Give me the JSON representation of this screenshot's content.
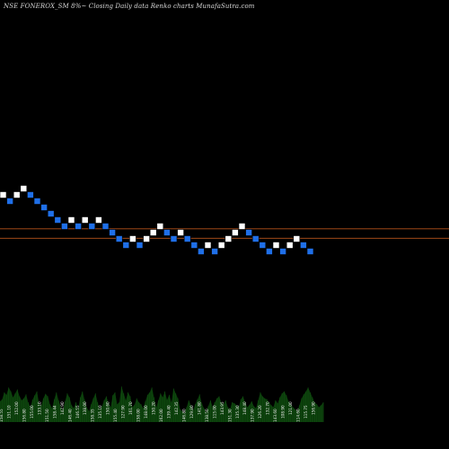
{
  "title": "NSE FONEROX_SM 8%~  Closing Daily data  Renko  charts MunafaSutra.com",
  "colors": {
    "background": "#000000",
    "up_brick": "#ffffff",
    "down_brick": "#1f6fe8",
    "reference_line": "#b5521b",
    "volume_fill": "#0b3a0b",
    "volume_label": "#e8e8e8"
  },
  "chart_data": {
    "type": "renko",
    "bricks": [
      {
        "dir": "up",
        "level": 0
      },
      {
        "dir": "down",
        "level": -1
      },
      {
        "dir": "up",
        "level": 0
      },
      {
        "dir": "up",
        "level": 1
      },
      {
        "dir": "down",
        "level": 0
      },
      {
        "dir": "down",
        "level": -1
      },
      {
        "dir": "down",
        "level": -2
      },
      {
        "dir": "down",
        "level": -3
      },
      {
        "dir": "down",
        "level": -4
      },
      {
        "dir": "down",
        "level": -5
      },
      {
        "dir": "up",
        "level": -4
      },
      {
        "dir": "down",
        "level": -5
      },
      {
        "dir": "up",
        "level": -4
      },
      {
        "dir": "down",
        "level": -5
      },
      {
        "dir": "up",
        "level": -4
      },
      {
        "dir": "down",
        "level": -5
      },
      {
        "dir": "down",
        "level": -6
      },
      {
        "dir": "down",
        "level": -7
      },
      {
        "dir": "down",
        "level": -8
      },
      {
        "dir": "up",
        "level": -7
      },
      {
        "dir": "down",
        "level": -8
      },
      {
        "dir": "up",
        "level": -7
      },
      {
        "dir": "up",
        "level": -6
      },
      {
        "dir": "up",
        "level": -5
      },
      {
        "dir": "down",
        "level": -6
      },
      {
        "dir": "down",
        "level": -7
      },
      {
        "dir": "up",
        "level": -6
      },
      {
        "dir": "down",
        "level": -7
      },
      {
        "dir": "down",
        "level": -8
      },
      {
        "dir": "down",
        "level": -9
      },
      {
        "dir": "up",
        "level": -8
      },
      {
        "dir": "down",
        "level": -9
      },
      {
        "dir": "up",
        "level": -8
      },
      {
        "dir": "up",
        "level": -7
      },
      {
        "dir": "up",
        "level": -6
      },
      {
        "dir": "up",
        "level": -5
      },
      {
        "dir": "down",
        "level": -6
      },
      {
        "dir": "down",
        "level": -7
      },
      {
        "dir": "down",
        "level": -8
      },
      {
        "dir": "down",
        "level": -9
      },
      {
        "dir": "up",
        "level": -8
      },
      {
        "dir": "down",
        "level": -9
      },
      {
        "dir": "up",
        "level": -8
      },
      {
        "dir": "up",
        "level": -7
      },
      {
        "dir": "down",
        "level": -8
      },
      {
        "dir": "down",
        "level": -9
      }
    ],
    "reference_lines": [
      {
        "level": -5.4
      },
      {
        "level": -6.9
      }
    ],
    "volume": {
      "values": [
        42,
        46,
        60,
        55,
        70,
        62,
        50,
        58,
        66,
        52,
        44,
        48,
        56,
        40,
        30,
        45,
        54,
        62,
        38,
        33,
        48,
        57,
        52,
        36,
        28,
        46,
        60,
        44,
        30,
        25,
        42,
        58,
        50,
        34,
        28,
        40,
        26,
        50,
        62,
        45,
        30,
        22,
        36,
        48,
        58,
        40,
        26,
        32,
        44,
        52,
        38,
        30,
        54,
        60,
        36,
        40,
        72,
        58,
        44,
        60,
        52,
        30,
        35,
        48,
        40,
        36,
        28,
        42,
        55,
        60,
        70,
        50,
        30,
        44,
        58,
        50,
        62,
        45,
        55,
        40,
        68,
        58,
        48,
        26,
        22,
        18,
        30,
        44,
        34,
        24,
        36,
        46,
        56,
        38,
        28,
        20,
        32,
        44,
        30,
        40,
        48,
        52,
        40,
        36,
        44,
        30,
        26,
        40,
        38,
        34,
        30,
        46,
        52,
        40,
        30,
        35,
        42,
        32,
        28,
        44,
        60,
        52,
        48,
        46,
        40,
        34,
        30,
        44,
        38,
        50,
        58,
        62,
        54,
        42,
        36,
        30,
        26,
        22,
        34,
        48,
        56,
        62,
        70,
        60,
        50,
        40,
        36,
        30,
        34,
        40
      ],
      "labels": [
        "158.55",
        "151.10",
        "152.00",
        "156.80",
        "155.00",
        "133.10",
        "151.50",
        "158.44",
        "142.90",
        "146.40",
        "146.55",
        "138.00",
        "158.35",
        "135.10",
        "150.60",
        "155.40",
        "127.90",
        "161.70",
        "158.00",
        "148.00",
        "150.20",
        "162.00",
        "139.40",
        "142.35",
        "146.80",
        "129.80",
        "141.80",
        "138.50",
        "115.00",
        "143.95",
        "151.30",
        "135.30",
        "148.40",
        "137.90",
        "126.20",
        "132.70",
        "143.60",
        "108.90",
        "121.00",
        "114.60",
        "115.75",
        "156.90"
      ]
    }
  }
}
